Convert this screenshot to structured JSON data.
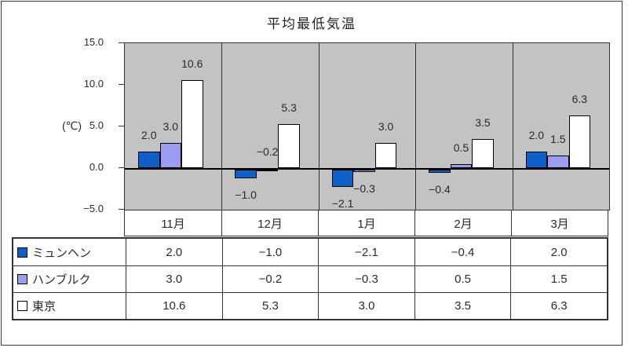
{
  "chart_data": {
    "type": "bar",
    "title": "平均最低気温",
    "ylabel": "(℃)",
    "ylim": [
      -5,
      15
    ],
    "yticks": [
      15.0,
      10.0,
      5.0,
      0.0,
      -5.0
    ],
    "categories": [
      "11月",
      "12月",
      "1月",
      "2月",
      "3月"
    ],
    "series": [
      {
        "key": "munich",
        "name": "ミュンヘン",
        "color": "#0d60c8",
        "values": [
          2.0,
          -1.0,
          -2.1,
          -0.4,
          2.0
        ]
      },
      {
        "key": "hamburg",
        "name": "ハンブルク",
        "color": "#9c9cf0",
        "values": [
          3.0,
          -0.2,
          -0.3,
          0.5,
          1.5
        ]
      },
      {
        "key": "tokyo",
        "name": "東京",
        "color": "#ffffff",
        "values": [
          10.6,
          5.3,
          3.0,
          3.5,
          6.3
        ]
      }
    ],
    "label_overrides": [
      {
        "series": 1,
        "category": 1,
        "placement": "above"
      }
    ],
    "plot_bg": "#c3c3c3",
    "grid": false,
    "legend_position": "table-left",
    "data_table": true
  },
  "colors": {
    "plot_background": "#c3c3c3",
    "bar_border": "#000000",
    "table_border": "#333333",
    "text": "#2a2a2a"
  }
}
